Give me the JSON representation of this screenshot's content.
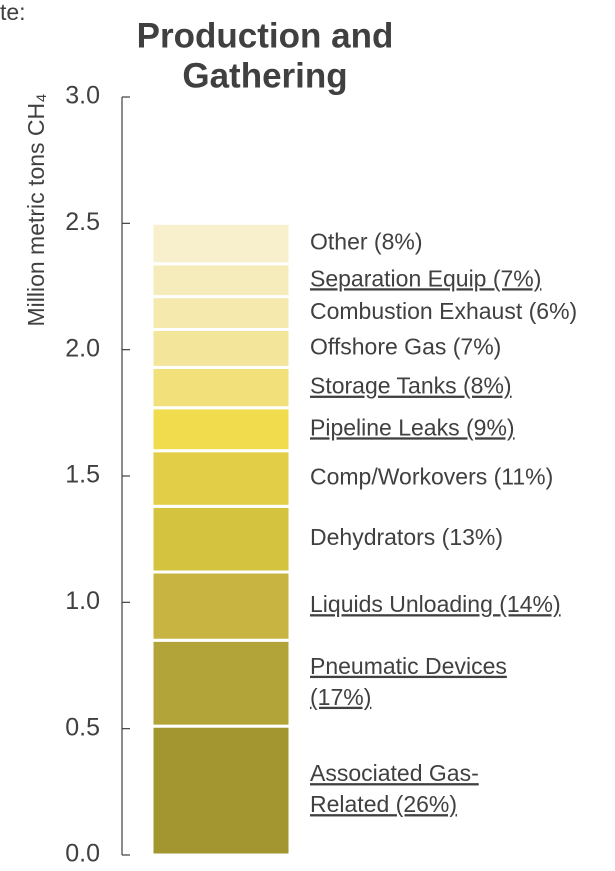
{
  "chart_data": {
    "type": "stacked_bar",
    "corner_text": "te:",
    "title": [
      "Production and",
      "Gathering"
    ],
    "ylabel": "Million metric tons CH₄",
    "ylim": [
      0,
      3
    ],
    "yticks": [
      {
        "value": 0,
        "label": "0.0"
      },
      0.5,
      {
        "value": 1,
        "label": "1.0"
      },
      1.5,
      {
        "value": 2,
        "label": "2.0"
      },
      2.5,
      {
        "value": 3,
        "label": "3.0"
      }
    ],
    "series": [
      {
        "name": [
          "Associated Gas-",
          "Related (26%)"
        ],
        "color": "#a39530",
        "values": [
          0.51
        ],
        "underlined": true
      },
      {
        "name": [
          "Pneumatic Devices",
          "(17%)"
        ],
        "color": "#b3a43a",
        "values": [
          0.34
        ],
        "underlined": true
      },
      {
        "name": [
          "Liquids Unloading (14%)"
        ],
        "color": "#c8b441",
        "values": [
          0.27
        ],
        "underlined": true
      },
      {
        "name": [
          "Dehydrators (13%)"
        ],
        "color": "#d4c33f",
        "values": [
          0.26
        ],
        "underlined": false
      },
      {
        "name": [
          "Comp/Workovers (11%)"
        ],
        "color": "#e2cf47",
        "values": [
          0.22
        ],
        "underlined": false
      },
      {
        "name": [
          "Pipeline Leaks (9%)"
        ],
        "color": "#f0dc4c",
        "values": [
          0.17
        ],
        "underlined": true
      },
      {
        "name": [
          "Storage Tanks (8%)"
        ],
        "color": "#f2e07a",
        "values": [
          0.16
        ],
        "underlined": true
      },
      {
        "name": [
          "Offshore Gas (7%)"
        ],
        "color": "#f3e59a",
        "values": [
          0.15
        ],
        "underlined": false
      },
      {
        "name": [
          "Combustion Exhaust (6%)"
        ],
        "color": "#f5e9ae",
        "values": [
          0.13
        ],
        "underlined": false
      },
      {
        "name": [
          "Separation Equip (7%)"
        ],
        "color": "#f6ecbb",
        "values": [
          0.13
        ],
        "underlined": true
      },
      {
        "name": [
          "Other (8%)"
        ],
        "color": "#f8efcd",
        "values": [
          0.16
        ],
        "underlined": false
      }
    ]
  }
}
